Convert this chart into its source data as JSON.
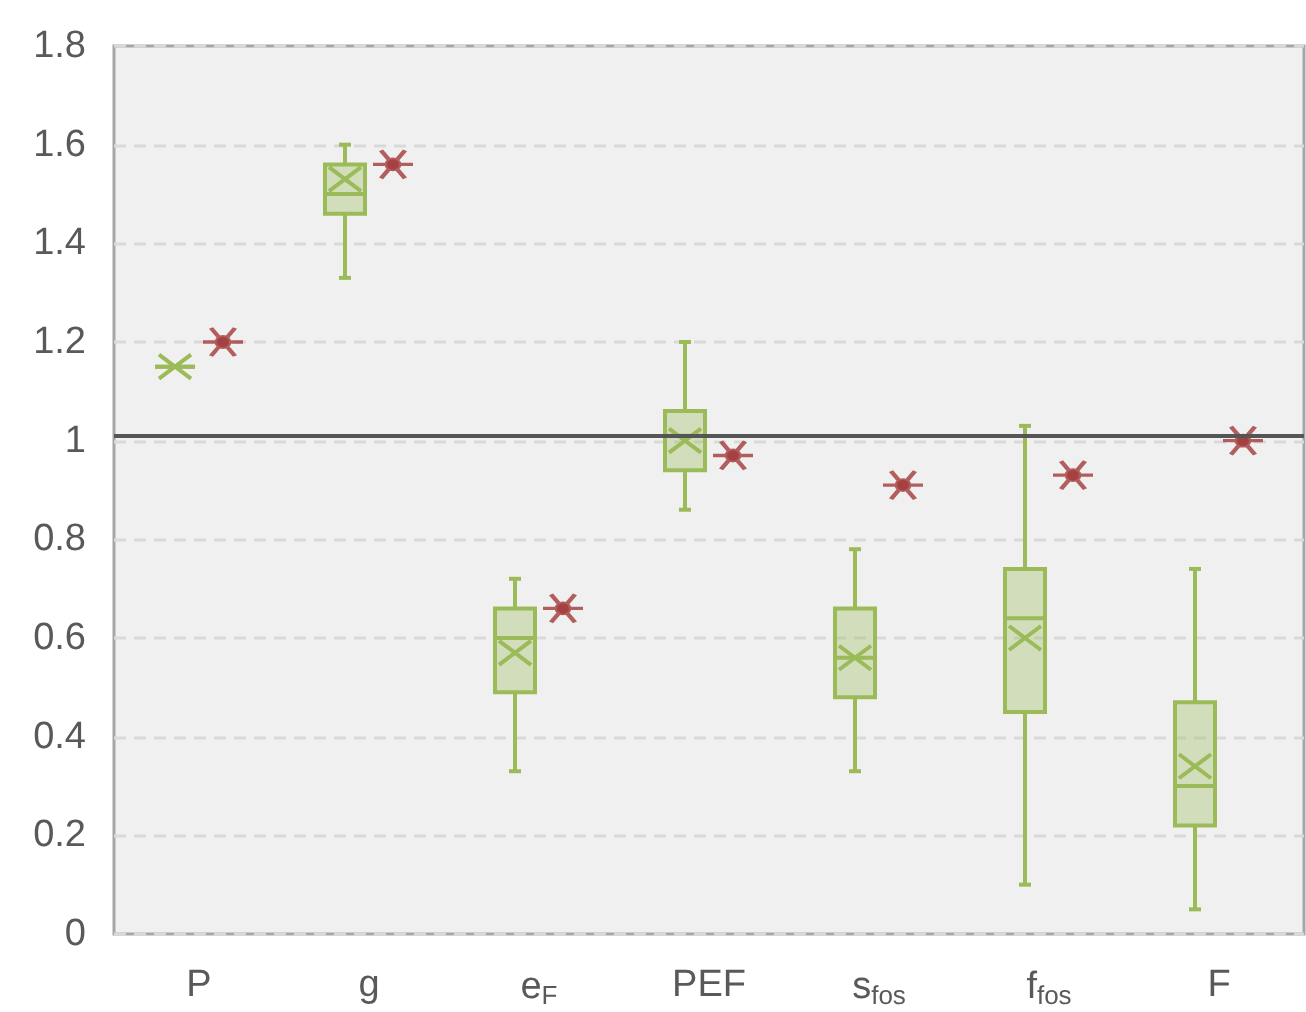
{
  "chart_data": {
    "type": "box",
    "categories": [
      "P",
      "g",
      "e$_{F}$",
      "PEF",
      "s$_{fos}$",
      "f$_{fos}$",
      "F"
    ],
    "ylim": [
      0,
      1.8
    ],
    "yticks": [
      0,
      0.2,
      0.4,
      0.6,
      0.8,
      1,
      1.2,
      1.4,
      1.6,
      1.8
    ],
    "grid": "y",
    "ref_lines": [
      {
        "axis": "y",
        "value": 1.01,
        "color": "#555555"
      }
    ],
    "series": [
      {
        "color": "#9bbb59",
        "boxes": [
          {
            "low": 1.15,
            "q1": 1.15,
            "median": 1.15,
            "q3": 1.15,
            "high": 1.15,
            "mean": 1.15
          },
          {
            "low": 1.33,
            "q1": 1.46,
            "median": 1.5,
            "q3": 1.56,
            "high": 1.6,
            "mean": 1.53
          },
          {
            "low": 0.33,
            "q1": 0.49,
            "median": 0.6,
            "q3": 0.66,
            "high": 0.72,
            "mean": 0.57
          },
          {
            "low": 0.86,
            "q1": 0.94,
            "median": 1.01,
            "q3": 1.06,
            "high": 1.2,
            "mean": 1.0
          },
          {
            "low": 0.33,
            "q1": 0.48,
            "median": 0.56,
            "q3": 0.66,
            "high": 0.78,
            "mean": 0.56
          },
          {
            "low": 0.1,
            "q1": 0.45,
            "median": 0.64,
            "q3": 0.74,
            "high": 1.03,
            "mean": 0.6
          },
          {
            "low": 0.05,
            "q1": 0.22,
            "median": 0.3,
            "q3": 0.47,
            "high": 0.74,
            "mean": 0.34
          }
        ]
      },
      {
        "type": "scatter",
        "color": "#a33a3a",
        "marker": "cross",
        "values": [
          1.2,
          1.56,
          0.66,
          0.97,
          0.91,
          0.93,
          1.0
        ]
      }
    ]
  }
}
